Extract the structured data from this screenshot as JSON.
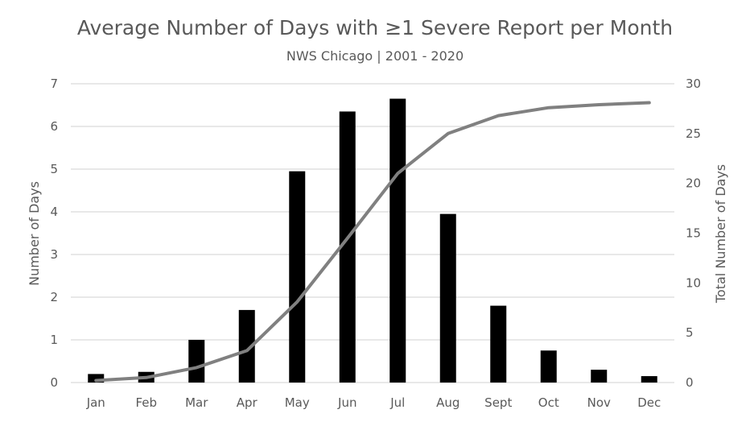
{
  "chart_data": {
    "type": "bar",
    "title": "Average Number of Days with ≥1 Severe Report per Month",
    "subtitle": "NWS Chicago | 2001 - 2020",
    "categories": [
      "Jan",
      "Feb",
      "Mar",
      "Apr",
      "May",
      "Jun",
      "Jul",
      "Aug",
      "Sept",
      "Oct",
      "Nov",
      "Dec"
    ],
    "series": [
      {
        "type": "bar",
        "axis": "left",
        "color": "#000000",
        "values": [
          0.2,
          0.25,
          1.0,
          1.7,
          4.95,
          6.35,
          6.65,
          3.95,
          1.8,
          0.75,
          0.3,
          0.15
        ]
      },
      {
        "type": "line",
        "axis": "right",
        "color": "#808080",
        "values": [
          0.2,
          0.5,
          1.5,
          3.2,
          8.1,
          14.5,
          21.0,
          25.0,
          26.8,
          27.6,
          27.9,
          28.1
        ]
      }
    ],
    "ylabel": "Number of Days",
    "ylabel_right": "Total Number of Days",
    "ylim": [
      0,
      7
    ],
    "ylim_right": [
      0,
      30
    ],
    "yticks": [
      "0",
      "1",
      "2",
      "3",
      "4",
      "5",
      "6",
      "7"
    ],
    "yticks_right": [
      "0",
      "5",
      "10",
      "15",
      "20",
      "25",
      "30"
    ],
    "grid": true,
    "legend": "none"
  }
}
